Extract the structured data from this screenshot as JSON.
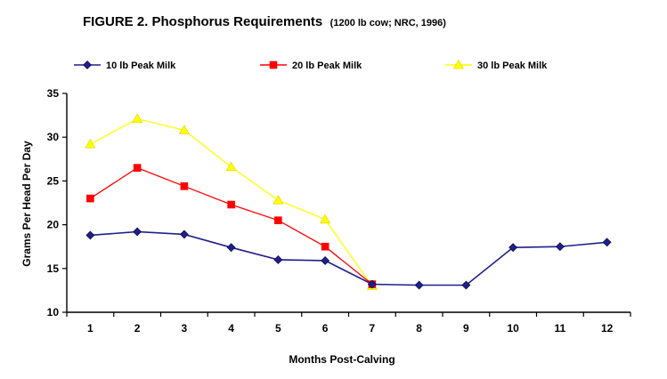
{
  "chart_data": {
    "type": "line",
    "title": "FIGURE 2.  Phosphorus  Requirements",
    "subtitle": "(1200 lb cow; NRC, 1996)",
    "xlabel": "Months Post-Calving",
    "ylabel": "Grams Per Head Per Day",
    "x": [
      1,
      2,
      3,
      4,
      5,
      6,
      7,
      8,
      9,
      10,
      11,
      12
    ],
    "ylim": [
      10,
      35
    ],
    "yticks": [
      10,
      15,
      20,
      25,
      30,
      35
    ],
    "grid": false,
    "legend_position": "top",
    "series": [
      {
        "name": "10 lb Peak Milk",
        "color": "#1f1f8c",
        "marker": "diamond",
        "values": [
          18.8,
          19.2,
          18.9,
          17.4,
          16.0,
          15.9,
          13.2,
          13.1,
          13.1,
          17.4,
          17.5,
          18.0
        ]
      },
      {
        "name": "20 lb Peak Milk",
        "color": "#ff0000",
        "marker": "square",
        "values": [
          23.0,
          26.5,
          24.4,
          22.3,
          20.5,
          17.5,
          13.2,
          null,
          null,
          null,
          null,
          null
        ]
      },
      {
        "name": "30 lb Peak Milk",
        "color": "#ffff00",
        "marker": "triangle",
        "values": [
          29.2,
          32.1,
          30.8,
          26.6,
          22.8,
          20.6,
          13.0,
          null,
          null,
          null,
          null,
          null
        ]
      }
    ]
  }
}
